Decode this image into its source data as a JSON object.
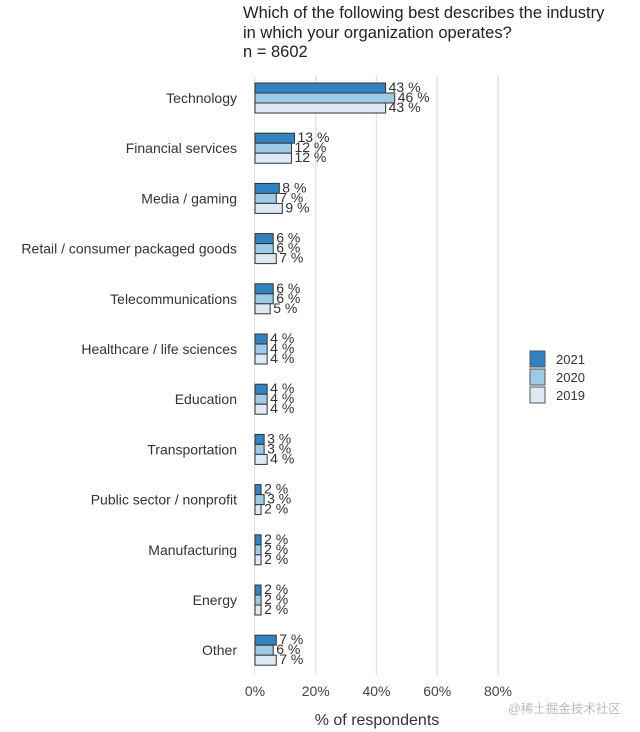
{
  "chart_data": {
    "type": "bar",
    "orientation": "horizontal",
    "title": "Which of the following best describes the industry in which your organization operates?",
    "title_lines": [
      "Which of the following best describes the industry",
      "in which your organization operates?"
    ],
    "subtitle": "n = 8602",
    "xlabel": "% of respondents",
    "ylabel": "",
    "xlim": [
      0,
      80
    ],
    "xticks": [
      0,
      20,
      40,
      60,
      80
    ],
    "xtick_labels": [
      "0%",
      "20%",
      "40%",
      "60%",
      "80%"
    ],
    "grid": "vertical",
    "legend_position": "right",
    "value_suffix": " %",
    "categories": [
      "Technology",
      "Financial services",
      "Media / gaming",
      "Retail / consumer packaged goods",
      "Telecommunications",
      "Healthcare / life sciences",
      "Education",
      "Transportation",
      "Public sector / nonprofit",
      "Manufacturing",
      "Energy",
      "Other"
    ],
    "series": [
      {
        "name": "2021",
        "color": "#3282c0",
        "values": [
          43,
          13,
          8,
          6,
          6,
          4,
          4,
          3,
          2,
          2,
          2,
          7
        ]
      },
      {
        "name": "2020",
        "color": "#9dcae4",
        "values": [
          46,
          12,
          7,
          6,
          6,
          4,
          4,
          3,
          3,
          2,
          2,
          6
        ]
      },
      {
        "name": "2019",
        "color": "#dde9f5",
        "values": [
          43,
          12,
          9,
          7,
          5,
          4,
          4,
          4,
          2,
          2,
          2,
          7
        ]
      }
    ],
    "bar_outline_color": "#333333"
  },
  "watermark": "@稀土掘金技术社区"
}
